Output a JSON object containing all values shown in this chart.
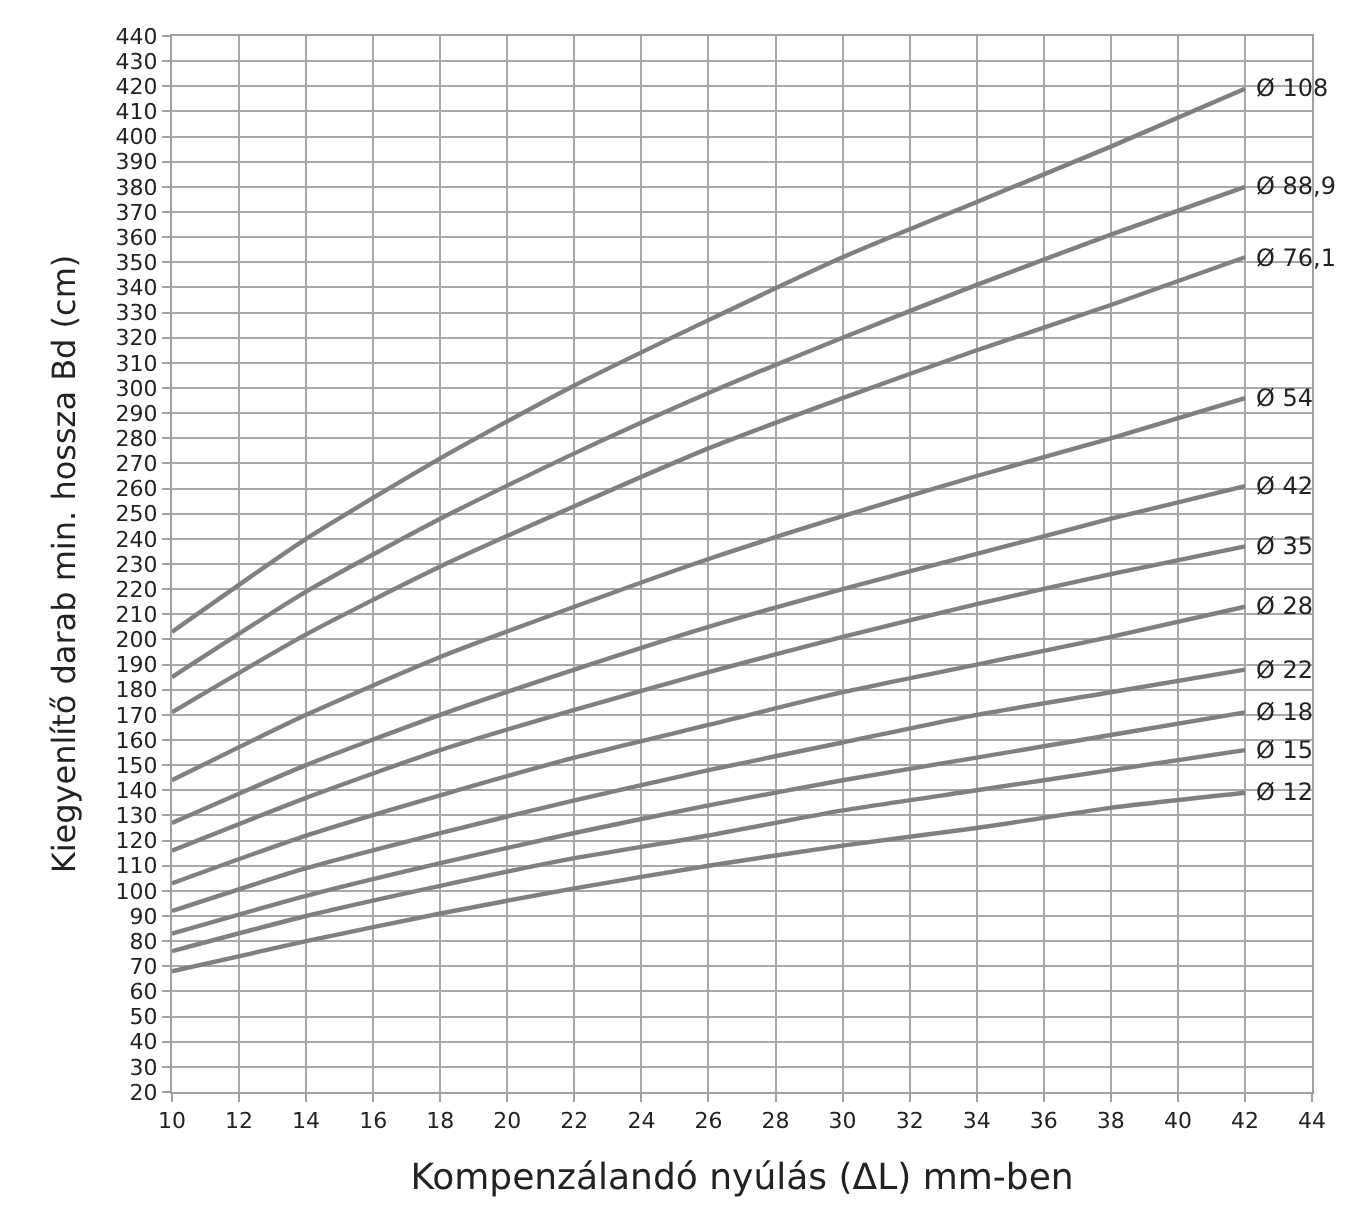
{
  "chart_data": {
    "type": "line",
    "xlabel": "Kompenzálandó nyúlás (ΔL) mm-ben",
    "ylabel": "Kiegyenlítő darab min. hossza Bd (cm)",
    "x": [
      10,
      14,
      18,
      22,
      26,
      30,
      34,
      38,
      42
    ],
    "series": [
      {
        "name": "Ø 108",
        "color": "#808080",
        "values": [
          203,
          240,
          272,
          301,
          327,
          352,
          374,
          396,
          419
        ]
      },
      {
        "name": "Ø 88,9",
        "color": "#808080",
        "values": [
          185,
          219,
          248,
          274,
          298,
          320,
          341,
          361,
          380
        ]
      },
      {
        "name": "Ø 76,1",
        "color": "#808080",
        "values": [
          171,
          202,
          229,
          253,
          276,
          296,
          315,
          333,
          352
        ]
      },
      {
        "name": "Ø 54",
        "color": "#808080",
        "values": [
          144,
          170,
          193,
          213,
          232,
          249,
          265,
          280,
          296
        ]
      },
      {
        "name": "Ø 42",
        "color": "#808080",
        "values": [
          127,
          150,
          170,
          188,
          205,
          220,
          234,
          248,
          261
        ]
      },
      {
        "name": "Ø 35",
        "color": "#808080",
        "values": [
          116,
          137,
          156,
          172,
          187,
          201,
          214,
          226,
          237
        ]
      },
      {
        "name": "Ø 28",
        "color": "#808080",
        "values": [
          103,
          122,
          138,
          153,
          166,
          179,
          190,
          201,
          213
        ]
      },
      {
        "name": "Ø 22",
        "color": "#808080",
        "values": [
          92,
          109,
          123,
          136,
          148,
          159,
          170,
          179,
          188
        ]
      },
      {
        "name": "Ø 18",
        "color": "#808080",
        "values": [
          83,
          98,
          111,
          123,
          134,
          144,
          153,
          162,
          171
        ]
      },
      {
        "name": "Ø 15",
        "color": "#808080",
        "values": [
          76,
          90,
          102,
          113,
          122,
          132,
          140,
          148,
          156
        ]
      },
      {
        "name": "Ø 12",
        "color": "#808080",
        "values": [
          68,
          80,
          91,
          101,
          110,
          118,
          125,
          133,
          139
        ]
      }
    ],
    "xlim": [
      10,
      44
    ],
    "xticks": [
      10,
      12,
      14,
      16,
      18,
      20,
      22,
      24,
      26,
      28,
      30,
      32,
      34,
      36,
      38,
      40,
      42,
      44
    ],
    "ylim": [
      20,
      440
    ],
    "yticks": [
      20,
      30,
      40,
      50,
      60,
      70,
      80,
      90,
      100,
      110,
      120,
      130,
      140,
      150,
      160,
      170,
      180,
      190,
      200,
      210,
      220,
      230,
      240,
      250,
      260,
      270,
      280,
      290,
      300,
      310,
      320,
      330,
      340,
      350,
      360,
      370,
      380,
      390,
      400,
      410,
      420,
      430,
      440
    ],
    "grid": true,
    "legend": false,
    "line_style": "solid"
  }
}
